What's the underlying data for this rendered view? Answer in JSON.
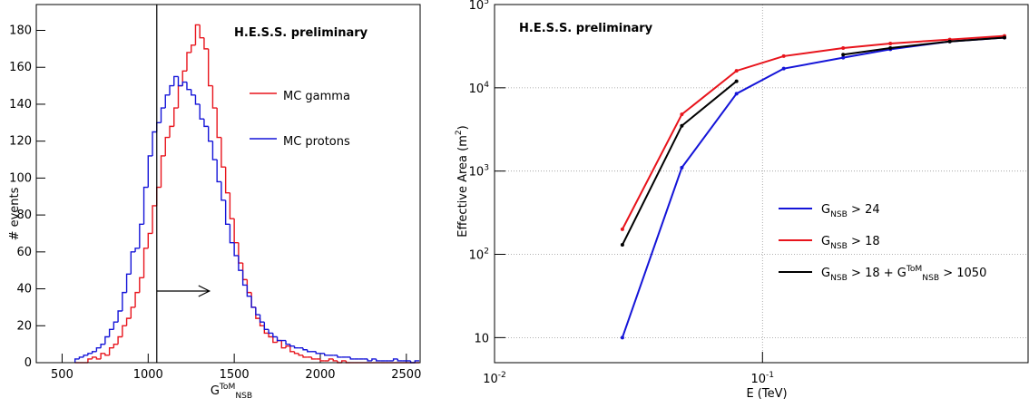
{
  "chart_data": [
    {
      "type": "histogram",
      "title": "H.E.S.S. preliminary",
      "x_label": "G^{ToM}_{NSB}",
      "y_label": "# events",
      "bins": [
        575,
        600,
        625,
        650,
        675,
        700,
        725,
        750,
        775,
        800,
        825,
        850,
        875,
        900,
        925,
        950,
        975,
        1000,
        1025,
        1050,
        1075,
        1100,
        1125,
        1150,
        1175,
        1200,
        1225,
        1250,
        1275,
        1300,
        1325,
        1350,
        1375,
        1400,
        1425,
        1450,
        1475,
        1500,
        1525,
        1550,
        1575,
        1600,
        1625,
        1650,
        1675,
        1700,
        1725,
        1750,
        1775,
        1800,
        1825,
        1850,
        1875,
        1900,
        1925,
        1950,
        1975,
        2000,
        2025,
        2050,
        2075,
        2100,
        2125,
        2150,
        2175,
        2200,
        2225,
        2250,
        2275,
        2300,
        2325,
        2350,
        2375,
        2400,
        2425,
        2450,
        2475,
        2500,
        2525,
        2550,
        2575
      ],
      "series": [
        {
          "name": "MC gamma",
          "color": "#e8141c",
          "values": [
            0,
            0,
            0,
            2,
            3,
            2,
            5,
            4,
            8,
            10,
            14,
            20,
            24,
            30,
            38,
            46,
            62,
            70,
            85,
            95,
            112,
            122,
            128,
            138,
            150,
            158,
            168,
            172,
            183,
            176,
            170,
            150,
            138,
            122,
            106,
            92,
            78,
            65,
            54,
            45,
            38,
            30,
            24,
            20,
            16,
            14,
            11,
            12,
            8,
            9,
            6,
            5,
            4,
            3,
            3,
            2,
            2,
            1,
            1,
            2,
            1,
            0,
            1,
            0,
            0,
            0,
            0,
            0,
            0,
            0,
            0,
            0,
            0,
            0,
            0,
            0,
            0,
            0,
            0,
            0
          ]
        },
        {
          "name": "MC protons",
          "color": "#1414d8",
          "values": [
            2,
            3,
            4,
            5,
            6,
            8,
            10,
            14,
            18,
            22,
            28,
            38,
            48,
            60,
            62,
            75,
            95,
            112,
            125,
            130,
            138,
            145,
            150,
            155,
            150,
            152,
            148,
            145,
            140,
            132,
            128,
            120,
            110,
            98,
            88,
            75,
            65,
            58,
            50,
            42,
            36,
            30,
            26,
            22,
            18,
            16,
            14,
            12,
            12,
            10,
            9,
            8,
            8,
            7,
            6,
            6,
            5,
            5,
            4,
            4,
            4,
            3,
            3,
            3,
            2,
            2,
            2,
            2,
            1,
            2,
            1,
            1,
            1,
            1,
            2,
            1,
            1,
            1,
            0,
            1
          ]
        }
      ],
      "cut": 1050,
      "xlim": [
        350,
        2580
      ],
      "xticks": [
        500,
        1000,
        1500,
        2000,
        2500
      ],
      "ylim": [
        0,
        194
      ],
      "yticks": [
        0,
        20,
        40,
        60,
        80,
        100,
        120,
        140,
        160,
        180
      ]
    },
    {
      "type": "line",
      "title": "H.E.S.S. preliminary",
      "x_label": "E (TeV)",
      "y_label": "Effective Area (m^{2})",
      "x": [
        0.03,
        0.05,
        0.08,
        0.12,
        0.2,
        0.3,
        0.5,
        0.8
      ],
      "series": [
        {
          "name": "G_{NSB} > 24",
          "color": "#1414d8",
          "values": [
            10,
            1100,
            8500,
            17000,
            23000,
            29000,
            36000,
            40000
          ]
        },
        {
          "name": "G_{NSB} > 18",
          "color": "#e8141c",
          "values": [
            200,
            4800,
            16000,
            24000,
            30000,
            34000,
            38000,
            42000
          ]
        },
        {
          "name": "G_{NSB} > 18 + G^{ToM}_{NSB} > 1050",
          "color": "#000000",
          "values": [
            130,
            3500,
            12000,
            null,
            25000,
            30000,
            36000,
            40000
          ]
        }
      ],
      "log_x": true,
      "log_y": true,
      "grid": true,
      "xlim": [
        0.01,
        0.98
      ],
      "xticks": [
        {
          "value": 0.01,
          "label": "10^{-2}"
        },
        {
          "value": 0.1,
          "label": "10^{-1}"
        }
      ],
      "ylim": [
        5,
        100000
      ],
      "yticks": [
        10,
        {
          "value": 100,
          "label": "10^{2}"
        },
        {
          "value": 1000,
          "label": "10^{3}"
        },
        {
          "value": 10000,
          "label": "10^{4}"
        },
        {
          "value": 100000,
          "label": "10^{5}"
        }
      ]
    }
  ]
}
